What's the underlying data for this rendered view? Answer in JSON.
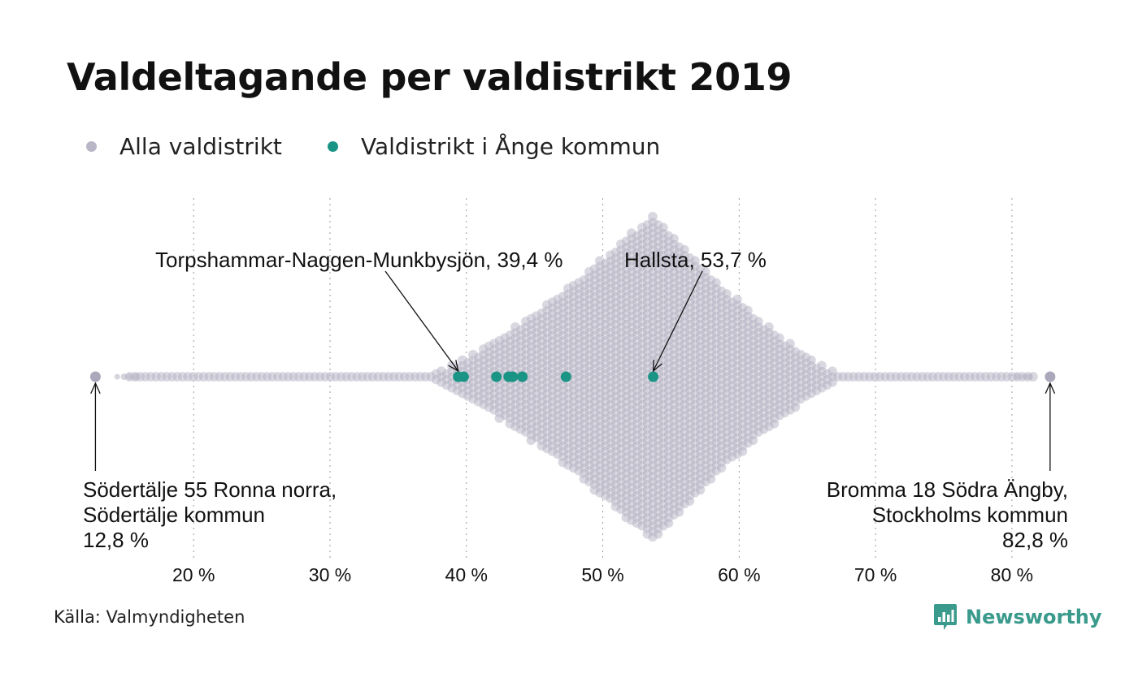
{
  "title": "Valdeltagande per valdistrikt 2019",
  "legend": [
    {
      "label": "Alla valdistrikt",
      "color": "#b9b7c7"
    },
    {
      "label": "Valdistrikt i Ånge kommun",
      "color": "#1a9485"
    }
  ],
  "annotations": {
    "torps": "Torpshammar-Naggen-Munkbysjön, 39,4 %",
    "hallsta": "Hallsta, 53,7 %",
    "min": [
      "Södertälje 55 Ronna norra,",
      "Södertälje kommun",
      "12,8 %"
    ],
    "max": [
      "Bromma 18 Södra Ängby,",
      "Stockholms kommun",
      "82,8 %"
    ]
  },
  "source": "Källa: Valmyndigheten",
  "brand": "Newsworthy",
  "chart_data": {
    "type": "scatter",
    "subtype": "beeswarm",
    "xlim": [
      12,
      84
    ],
    "x_ticks": [
      20,
      30,
      40,
      50,
      60,
      70,
      80
    ],
    "x_tick_labels": [
      "20 %",
      "30 %",
      "40 %",
      "50 %",
      "60 %",
      "70 %",
      "80 %"
    ],
    "grid": "vertical dotted",
    "legend_position": "top-left",
    "series": [
      {
        "name": "Alla valdistrikt",
        "color": "#b9b7c7",
        "distribution_note": "dense swarm of all districts",
        "min": 12.8,
        "max": 82.8,
        "peak": 53.7
      },
      {
        "name": "Valdistrikt i Ånge kommun",
        "color": "#1a9485",
        "values": [
          39.4,
          39.8,
          42.2,
          43.1,
          43.4,
          44.1,
          47.3,
          53.7
        ]
      }
    ]
  }
}
